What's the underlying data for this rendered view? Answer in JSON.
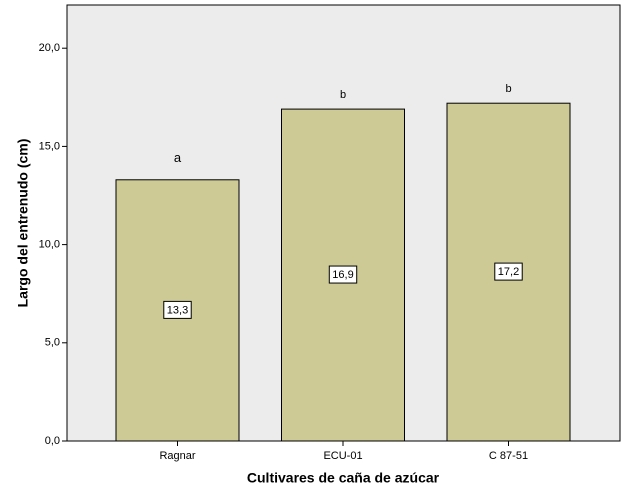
{
  "chart_data": {
    "type": "bar",
    "xlabel": "Cultivares de caña de azúcar",
    "ylabel": "Largo del entrenudo (cm)",
    "categories": [
      "Ragnar",
      "ECU-01",
      "C 87-51"
    ],
    "values": [
      13.3,
      16.9,
      17.2
    ],
    "value_labels": [
      "13,3",
      "16,9",
      "17,2"
    ],
    "annotations": [
      "a",
      "b",
      "b"
    ],
    "color": "#cdca96",
    "ylim": [
      0,
      22.2
    ],
    "yticks": [
      {
        "value": 0,
        "label": "0,0"
      },
      {
        "value": 5,
        "label": "5,0"
      },
      {
        "value": 10,
        "label": "10,0"
      },
      {
        "value": 15,
        "label": "15,0"
      },
      {
        "value": 20,
        "label": "20,0"
      }
    ]
  }
}
